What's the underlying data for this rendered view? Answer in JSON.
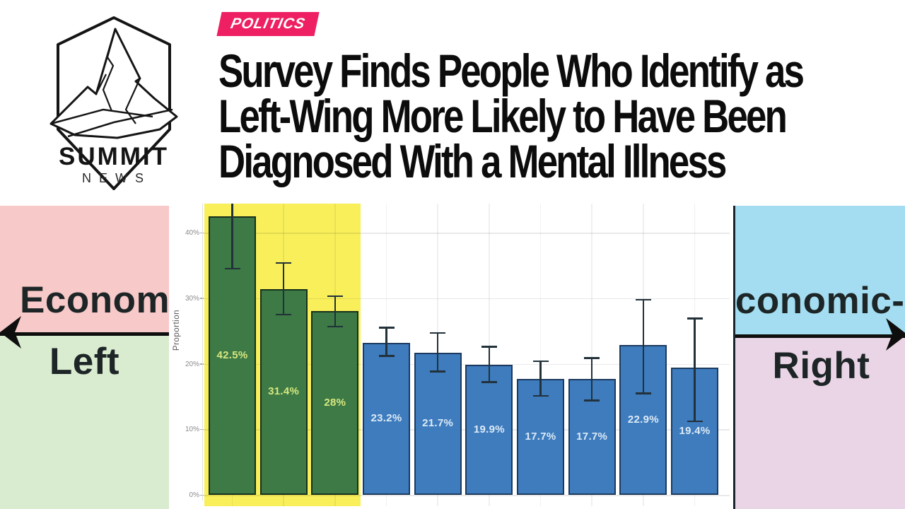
{
  "header": {
    "logo": {
      "title": "SUMMIT",
      "subtitle": "NEWS"
    },
    "tag": {
      "label": "POLITICS",
      "color": "#ee1f63"
    },
    "headline_lines": [
      "Survey Finds People Who Identify as",
      "Left-Wing More Likely to Have Been",
      "Diagnosed With a Mental Illness"
    ]
  },
  "spectrum_panels": {
    "left": {
      "axis_label_top": "Economic-",
      "axis_label_bottom": "Left",
      "top_color": "#f7c9c8",
      "bottom_color": "#d9ecd0"
    },
    "right": {
      "axis_label_top": "Economic-",
      "axis_label_bottom": "Right",
      "top_color": "#a4ddf1",
      "bottom_color": "#ead5e6"
    }
  },
  "chart_data": {
    "type": "bar",
    "title": "",
    "xlabel": "",
    "ylabel": "Proportion",
    "ylim": [
      0,
      44
    ],
    "grid": true,
    "y_ticks": [
      {
        "value": 0,
        "label": "0%"
      },
      {
        "value": 10,
        "label": "10%"
      },
      {
        "value": 20,
        "label": "20%"
      },
      {
        "value": 30,
        "label": "30%"
      },
      {
        "value": 40,
        "label": "40%"
      }
    ],
    "bars": [
      {
        "value": 42.5,
        "label": "42.5%",
        "group": "left",
        "ci": [
          34.5,
          51.0
        ]
      },
      {
        "value": 31.4,
        "label": "31.4%",
        "group": "left",
        "ci": [
          27.5,
          35.4
        ]
      },
      {
        "value": 28.0,
        "label": "28%",
        "group": "left",
        "ci": [
          25.7,
          30.3
        ]
      },
      {
        "value": 23.2,
        "label": "23.2%",
        "group": "right",
        "ci": [
          21.2,
          25.5
        ]
      },
      {
        "value": 21.7,
        "label": "21.7%",
        "group": "right",
        "ci": [
          18.8,
          24.7
        ]
      },
      {
        "value": 19.9,
        "label": "19.9%",
        "group": "right",
        "ci": [
          17.2,
          22.6
        ]
      },
      {
        "value": 17.7,
        "label": "17.7%",
        "group": "right",
        "ci": [
          15.1,
          20.4
        ]
      },
      {
        "value": 17.7,
        "label": "17.7%",
        "group": "right",
        "ci": [
          14.4,
          20.9
        ]
      },
      {
        "value": 22.9,
        "label": "22.9%",
        "group": "right",
        "ci": [
          15.5,
          29.8
        ]
      },
      {
        "value": 19.4,
        "label": "19.4%",
        "group": "right",
        "ci": [
          11.2,
          26.9
        ]
      }
    ],
    "highlight": {
      "covers_bars": [
        0,
        1,
        2
      ],
      "color": "#f8ef5a"
    },
    "colors": {
      "left_group_fill": "#3d7a46",
      "left_group_border": "#17301c",
      "left_group_label": "#d8e87f",
      "right_group_fill": "#3e7cbe",
      "right_group_border": "#1c3a5f",
      "right_group_label": "#ddeaf6",
      "error_bar": "#22313a"
    }
  }
}
